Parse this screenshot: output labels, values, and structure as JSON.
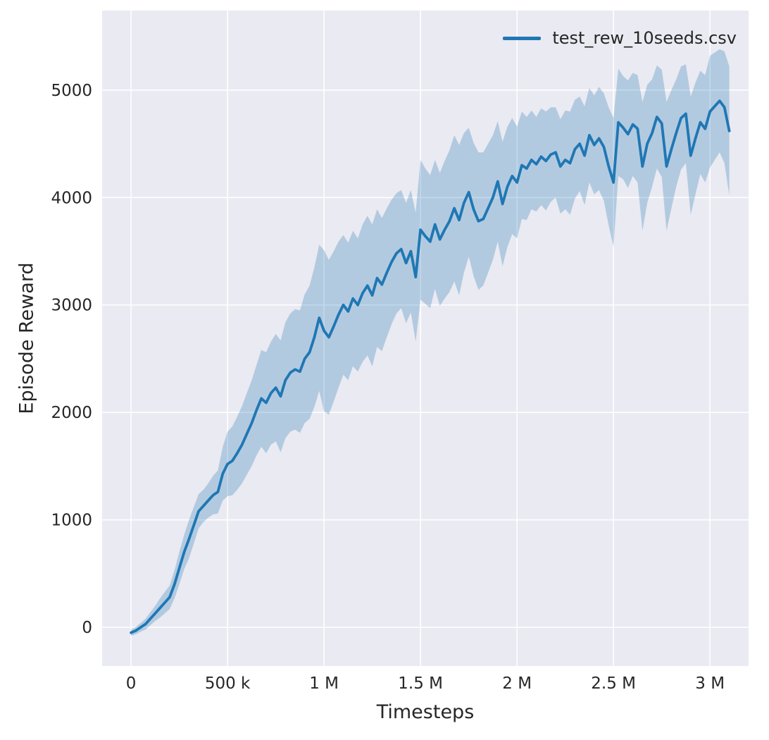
{
  "chart_data": {
    "type": "line",
    "title": "",
    "xlabel": "Timesteps",
    "ylabel": "Episode Reward",
    "grid": true,
    "background": "#eaeaf2",
    "grid_color": "#ffffff",
    "tick_color": "#262626",
    "legend_position": "upper right",
    "legend": [
      {
        "label": "test_rew_10seeds.csv",
        "color": "#1f77b4"
      }
    ],
    "xlim": [
      -150000,
      3200000
    ],
    "ylim": [
      -360,
      5740
    ],
    "x_ticks": [
      {
        "value": 0,
        "label": "0"
      },
      {
        "value": 500000,
        "label": "500 k"
      },
      {
        "value": 1000000,
        "label": "1 M"
      },
      {
        "value": 1500000,
        "label": "1.5 M"
      },
      {
        "value": 2000000,
        "label": "2 M"
      },
      {
        "value": 2500000,
        "label": "2.5 M"
      },
      {
        "value": 3000000,
        "label": "3 M"
      }
    ],
    "y_ticks": [
      {
        "value": 0,
        "label": "0"
      },
      {
        "value": 1000,
        "label": "1000"
      },
      {
        "value": 2000,
        "label": "2000"
      },
      {
        "value": 3000,
        "label": "3000"
      },
      {
        "value": 4000,
        "label": "4000"
      },
      {
        "value": 5000,
        "label": "5000"
      }
    ],
    "series": [
      {
        "name": "test_rew_10seeds.csv",
        "color": "#1f77b4",
        "band_opacity": 0.28,
        "x_start": 0,
        "x_step": 25000,
        "mean": [
          -50,
          -30,
          0,
          30,
          80,
          130,
          180,
          230,
          280,
          400,
          550,
          700,
          820,
          950,
          1080,
          1130,
          1180,
          1230,
          1260,
          1430,
          1520,
          1550,
          1620,
          1700,
          1800,
          1900,
          2020,
          2130,
          2090,
          2180,
          2230,
          2150,
          2300,
          2370,
          2400,
          2380,
          2500,
          2560,
          2700,
          2880,
          2760,
          2700,
          2800,
          2910,
          3000,
          2940,
          3060,
          3000,
          3110,
          3180,
          3090,
          3250,
          3190,
          3300,
          3400,
          3480,
          3520,
          3390,
          3500,
          3260,
          3700,
          3640,
          3590,
          3750,
          3610,
          3700,
          3780,
          3900,
          3790,
          3950,
          4050,
          3890,
          3780,
          3800,
          3900,
          4000,
          4150,
          3940,
          4100,
          4200,
          4140,
          4300,
          4270,
          4350,
          4310,
          4380,
          4340,
          4400,
          4420,
          4290,
          4350,
          4320,
          4450,
          4500,
          4390,
          4580,
          4490,
          4550,
          4470,
          4290,
          4140,
          4700,
          4650,
          4590,
          4680,
          4640,
          4290,
          4500,
          4600,
          4750,
          4690,
          4290,
          4450,
          4600,
          4740,
          4780,
          4390,
          4550,
          4700,
          4640,
          4800,
          4850,
          4900,
          4840,
          4620
        ],
        "spread": [
          30,
          35,
          40,
          50,
          60,
          70,
          90,
          100,
          110,
          130,
          150,
          160,
          180,
          170,
          160,
          150,
          160,
          180,
          200,
          250,
          300,
          320,
          340,
          360,
          380,
          400,
          420,
          450,
          470,
          480,
          500,
          520,
          540,
          550,
          560,
          570,
          600,
          620,
          650,
          680,
          750,
          720,
          700,
          680,
          650,
          640,
          630,
          620,
          640,
          650,
          660,
          640,
          620,
          600,
          580,
          560,
          550,
          560,
          570,
          600,
          650,
          630,
          620,
          600,
          620,
          640,
          660,
          680,
          700,
          650,
          600,
          620,
          640,
          620,
          600,
          580,
          560,
          580,
          560,
          540,
          520,
          500,
          480,
          460,
          440,
          450,
          460,
          440,
          420,
          440,
          460,
          480,
          460,
          440,
          460,
          440,
          460,
          480,
          500,
          550,
          600,
          500,
          480,
          500,
          480,
          500,
          600,
          550,
          500,
          480,
          500,
          600,
          550,
          500,
          480,
          460,
          550,
          520,
          480,
          500,
          520,
          500,
          480,
          520,
          600
        ]
      }
    ]
  }
}
